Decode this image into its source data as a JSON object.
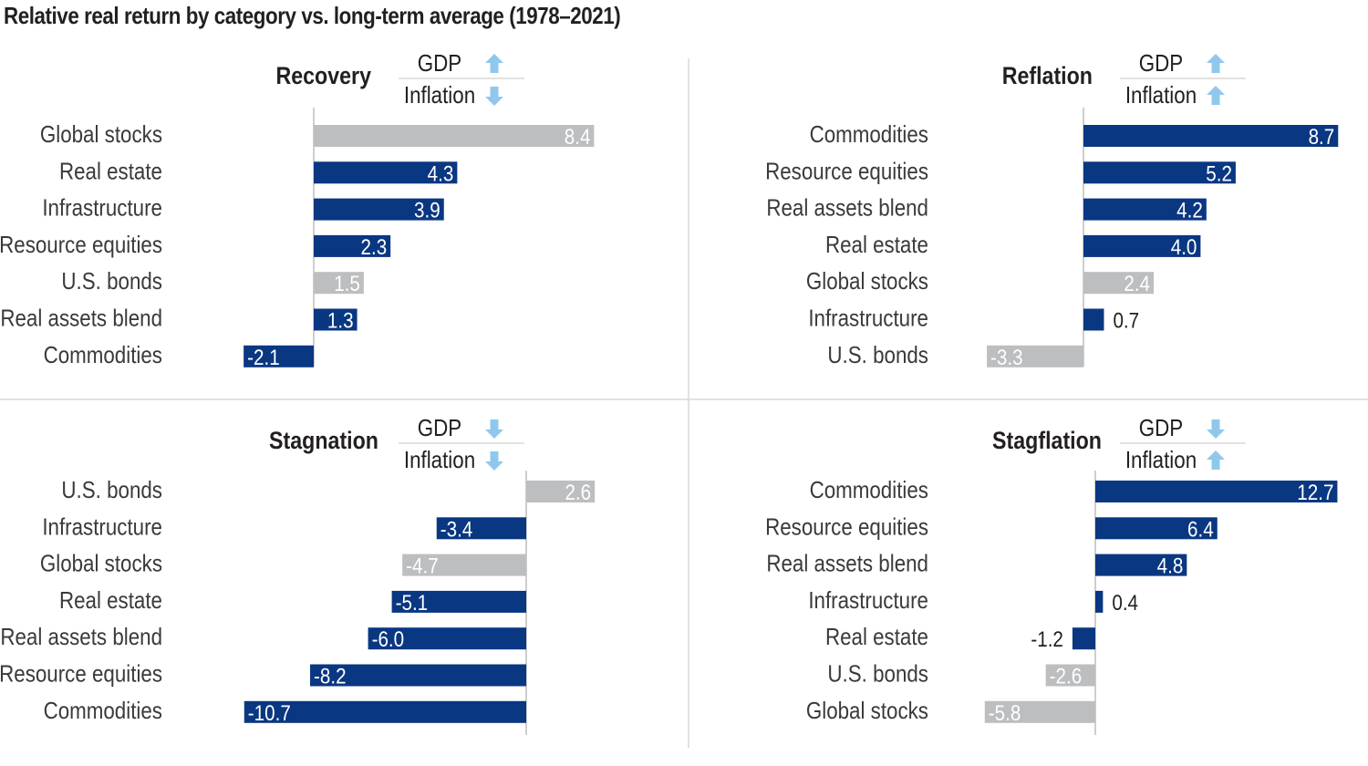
{
  "title": "Relative real return by category vs. long-term average (1978–2021)",
  "colors": {
    "highlight": "#0a3782",
    "muted": "#bcbec0",
    "arrow": "#8fc8ec"
  },
  "chart_data": [
    {
      "type": "bar",
      "orientation": "horizontal",
      "title": "Recovery",
      "indicators": [
        {
          "label": "GDP",
          "direction": "up"
        },
        {
          "label": "Inflation",
          "direction": "down"
        }
      ],
      "categories": [
        "Global stocks",
        "Real estate",
        "Infrastructure",
        "Resource equities",
        "U.S. bonds",
        "Real assets blend",
        "Commodities"
      ],
      "values": [
        8.4,
        4.3,
        3.9,
        2.3,
        1.5,
        1.3,
        -2.1
      ],
      "labels": [
        "8.4",
        "4.3",
        "3.9",
        "2.3",
        "1.5",
        "1.3",
        "-2.1"
      ],
      "highlighted": [
        false,
        true,
        true,
        true,
        false,
        true,
        true
      ]
    },
    {
      "type": "bar",
      "orientation": "horizontal",
      "title": "Reflation",
      "indicators": [
        {
          "label": "GDP",
          "direction": "up"
        },
        {
          "label": "Inflation",
          "direction": "up"
        }
      ],
      "categories": [
        "Commodities",
        "Resource equities",
        "Real assets blend",
        "Real estate",
        "Global stocks",
        "Infrastructure",
        "U.S. bonds"
      ],
      "values": [
        8.7,
        5.2,
        4.2,
        4.0,
        2.4,
        0.7,
        -3.3
      ],
      "labels": [
        "8.7",
        "5.2",
        "4.2",
        "4.0",
        "2.4",
        "0.7",
        "-3.3"
      ],
      "highlighted": [
        true,
        true,
        true,
        true,
        false,
        true,
        false
      ]
    },
    {
      "type": "bar",
      "orientation": "horizontal",
      "title": "Stagnation",
      "indicators": [
        {
          "label": "GDP",
          "direction": "down"
        },
        {
          "label": "Inflation",
          "direction": "down"
        }
      ],
      "categories": [
        "U.S. bonds",
        "Infrastructure",
        "Global stocks",
        "Real estate",
        "Real assets blend",
        "Resource equities",
        "Commodities"
      ],
      "values": [
        2.6,
        -3.4,
        -4.7,
        -5.1,
        -6.0,
        -8.2,
        -10.7
      ],
      "labels": [
        "2.6",
        "-3.4",
        "-4.7",
        "-5.1",
        "-6.0",
        "-8.2",
        "-10.7"
      ],
      "highlighted": [
        false,
        true,
        false,
        true,
        true,
        true,
        true
      ]
    },
    {
      "type": "bar",
      "orientation": "horizontal",
      "title": "Stagflation",
      "indicators": [
        {
          "label": "GDP",
          "direction": "down"
        },
        {
          "label": "Inflation",
          "direction": "up"
        }
      ],
      "categories": [
        "Commodities",
        "Resource equities",
        "Real assets blend",
        "Infrastructure",
        "Real estate",
        "U.S. bonds",
        "Global stocks"
      ],
      "values": [
        12.7,
        6.4,
        4.8,
        0.4,
        -1.2,
        -2.6,
        -5.8
      ],
      "labels": [
        "12.7",
        "6.4",
        "4.8",
        "0.4",
        "-1.2",
        "-2.6",
        "-5.8"
      ],
      "highlighted": [
        true,
        true,
        true,
        true,
        true,
        false,
        false
      ]
    }
  ]
}
